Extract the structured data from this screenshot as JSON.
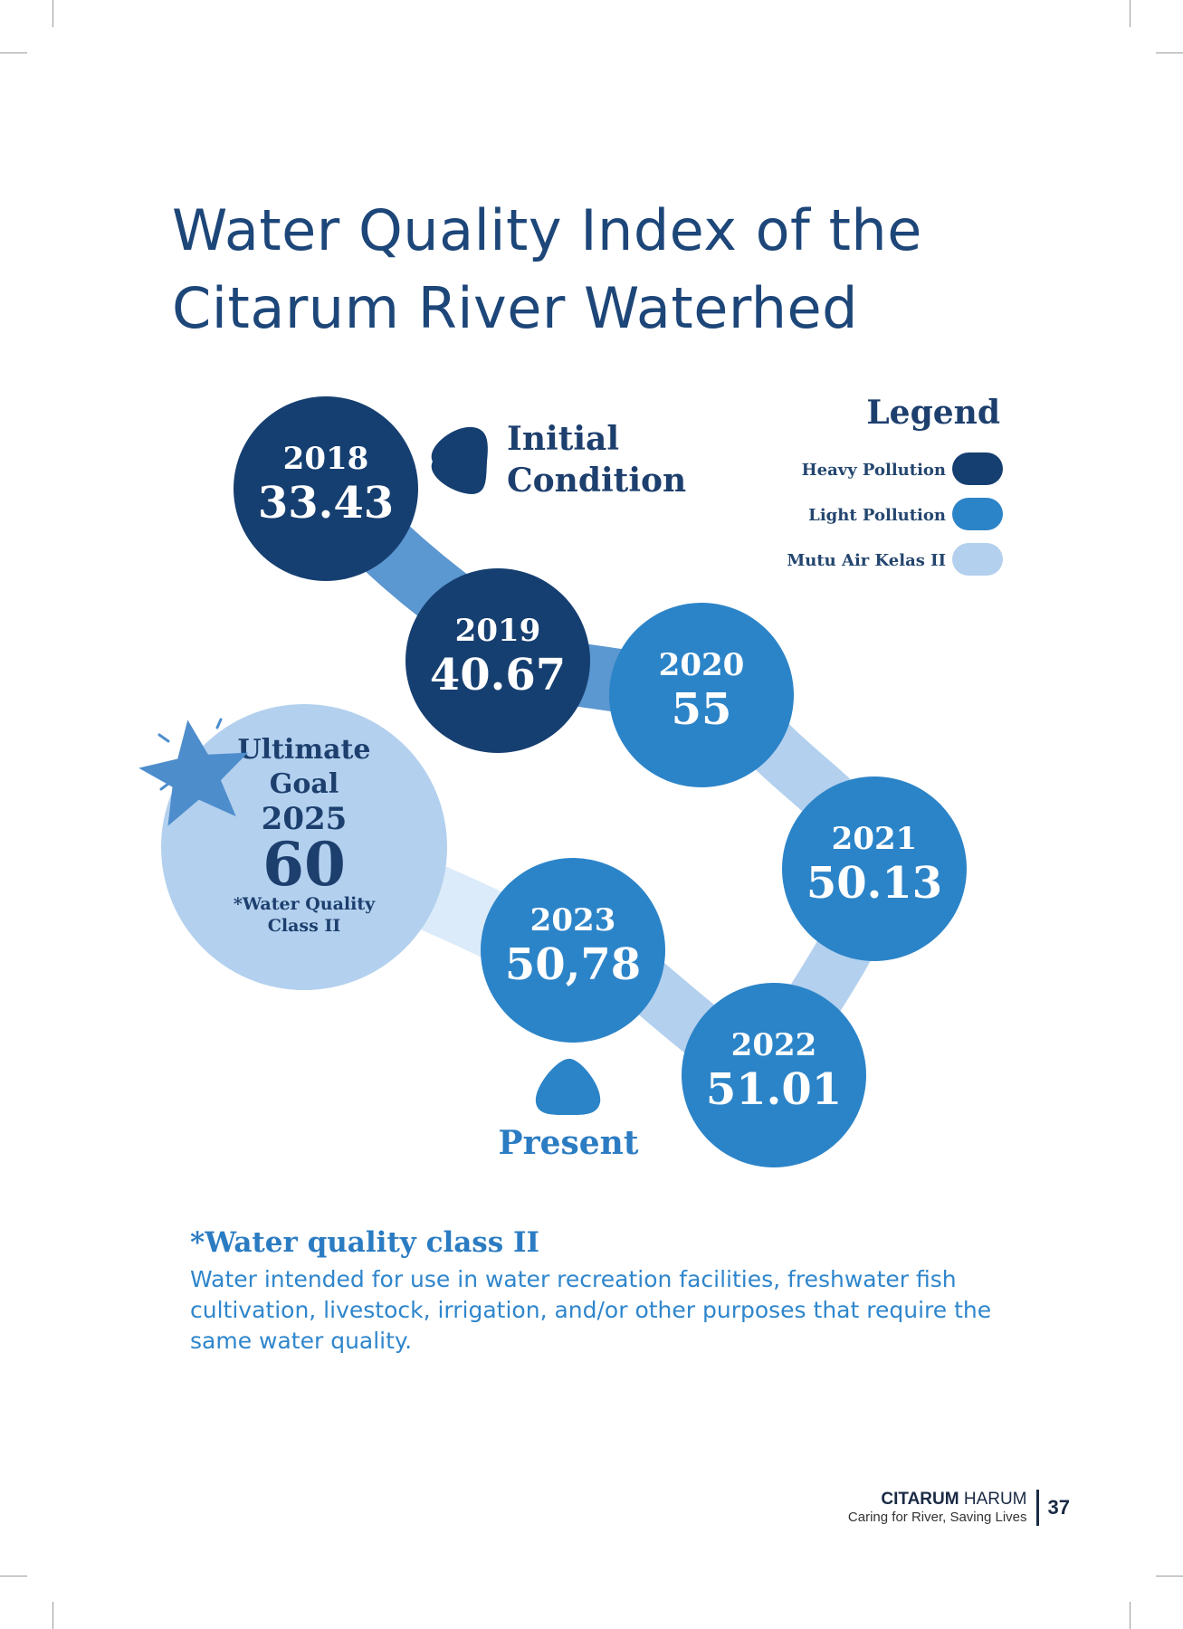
{
  "page": {
    "title_line1": "Water Quality Index of the",
    "title_line2": "Citarum River Waterhed"
  },
  "chart_data": {
    "type": "bubble-timeline",
    "title": "Water Quality Index of the Citarum River Waterhed",
    "points": [
      {
        "year": "2018",
        "value": 33.43,
        "label": "33.43",
        "category": "Heavy Pollution"
      },
      {
        "year": "2019",
        "value": 40.67,
        "label": "40.67",
        "category": "Heavy Pollution"
      },
      {
        "year": "2020",
        "value": 55,
        "label": "55",
        "category": "Light Pollution"
      },
      {
        "year": "2021",
        "value": 50.13,
        "label": "50.13",
        "category": "Light Pollution"
      },
      {
        "year": "2022",
        "value": 51.01,
        "label": "51.01",
        "category": "Light Pollution"
      },
      {
        "year": "2023",
        "value": 50.78,
        "label": "50,78",
        "category": "Light Pollution"
      }
    ],
    "goal": {
      "line1": "Ultimate",
      "line2": "Goal",
      "year": "2025",
      "value": 60,
      "label": "60",
      "note_line1": "*Water Quality",
      "note_line2": "Class II",
      "category": "Mutu Air Kelas II"
    },
    "annotations": {
      "initial_line1": "Initial",
      "initial_line2": "Condition",
      "present": "Present"
    },
    "legend": {
      "title": "Legend",
      "position": "top-right",
      "items": [
        {
          "label": "Heavy Pollution",
          "color": "#163f71"
        },
        {
          "label": "Light Pollution",
          "color": "#2c84c8"
        },
        {
          "label": "Mutu  Air Kelas II",
          "color": "#b3d0ee"
        }
      ]
    }
  },
  "note": {
    "title": "*Water quality class II",
    "body": "Water intended for use in water recreation facilities, freshwater fish cultivation, livestock, irrigation, and/or other purposes that require the same water quality."
  },
  "footer": {
    "brand_bold": "CITARUM",
    "brand_rest": " HARUM",
    "tagline": "Caring for River, Saving Lives",
    "page_number": "37"
  }
}
